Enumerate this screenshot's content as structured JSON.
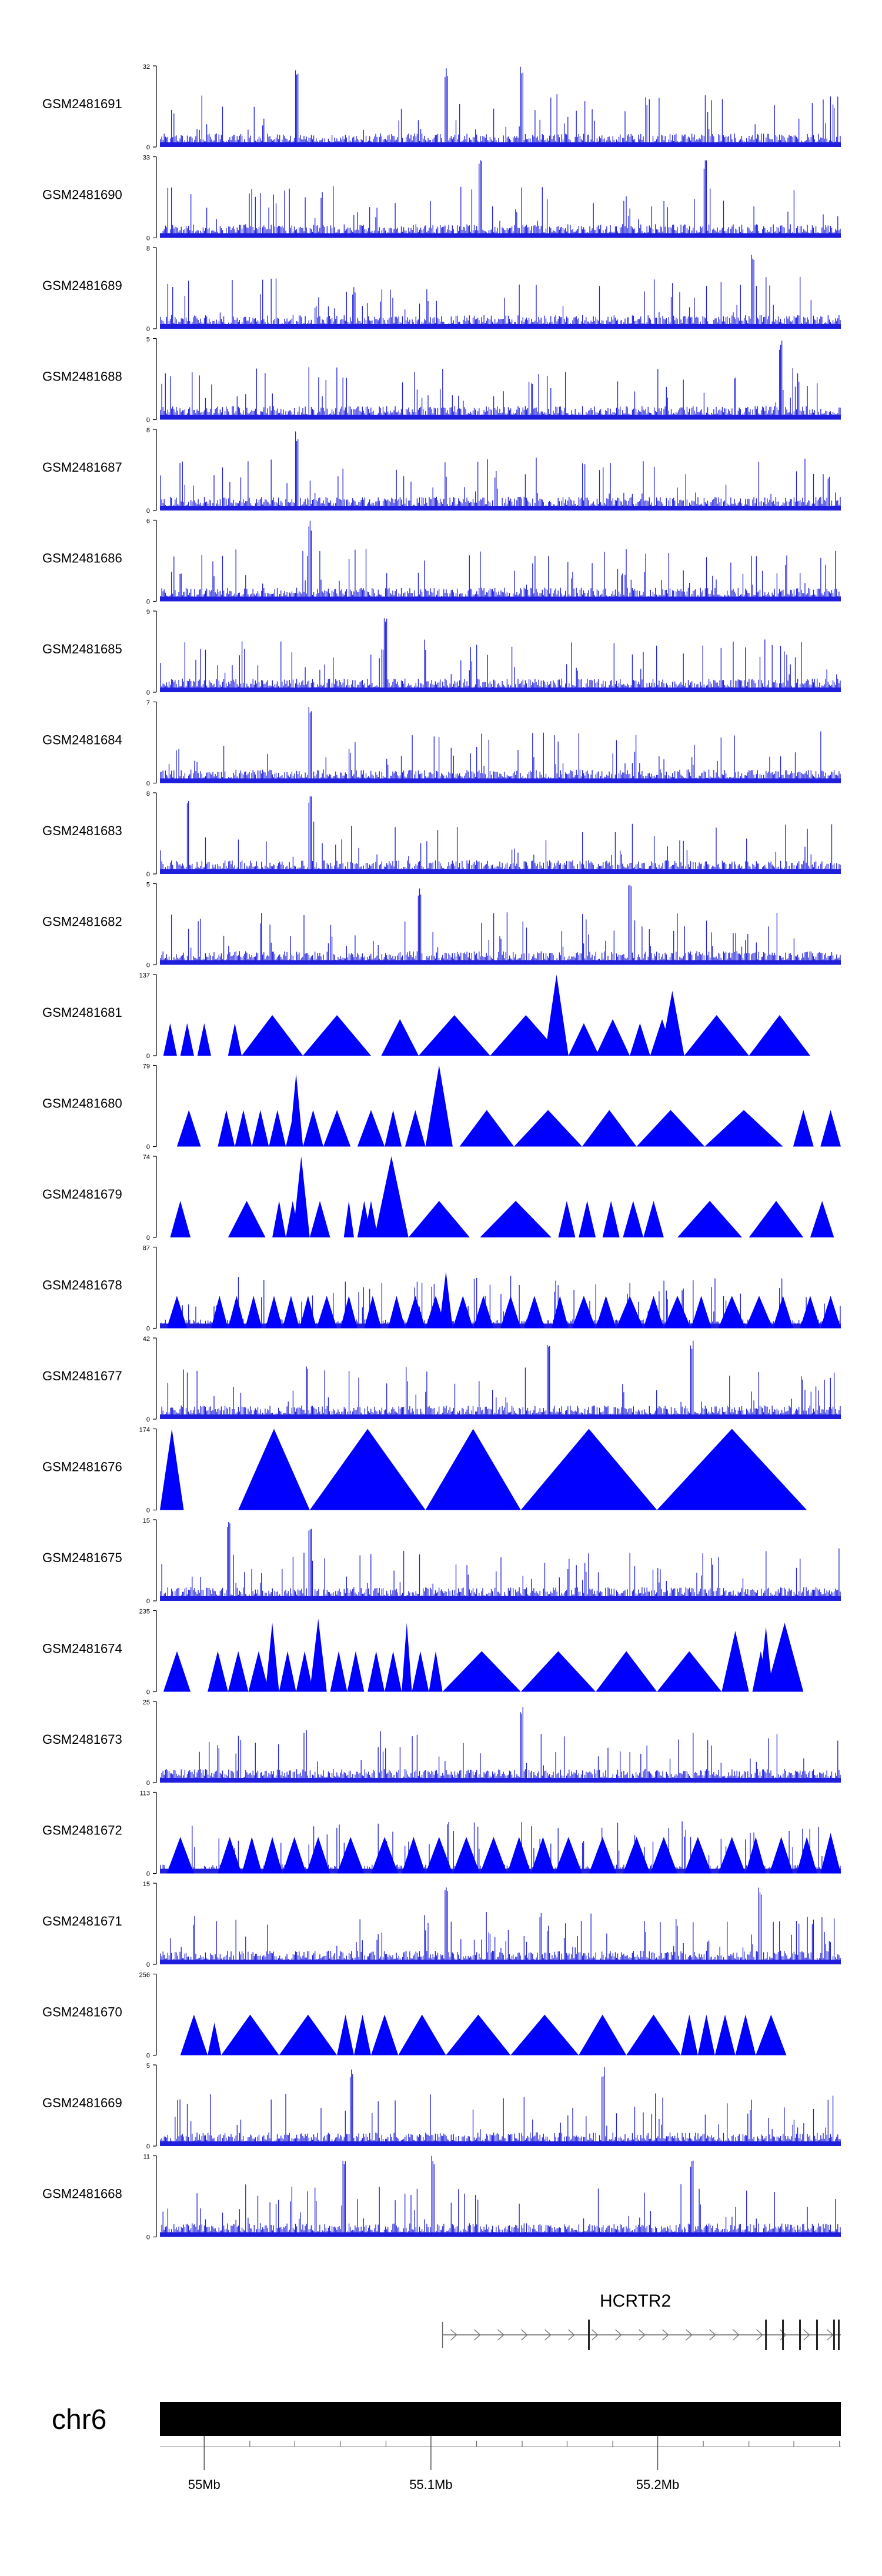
{
  "chart_data": {
    "type": "area",
    "title": "",
    "track_color": "#1e1edc",
    "filled_track_color": "#0000ff",
    "axis_color": "#000000",
    "tracks": [
      {
        "name": "GSM2481691",
        "ymax": "32",
        "ymin": "0",
        "style": "signal",
        "seed": 91,
        "peaks": [
          0.2,
          0.42,
          0.53
        ]
      },
      {
        "name": "GSM2481690",
        "ymax": "33",
        "ymin": "0",
        "style": "signal",
        "seed": 90,
        "peaks": [
          0.47,
          0.8
        ]
      },
      {
        "name": "GSM2481689",
        "ymax": "8",
        "ymin": "0",
        "style": "signal",
        "seed": 89,
        "peaks": [
          0.87
        ]
      },
      {
        "name": "GSM2481688",
        "ymax": "5",
        "ymin": "0",
        "style": "signal",
        "seed": 88,
        "peaks": [
          0.91
        ]
      },
      {
        "name": "GSM2481687",
        "ymax": "8",
        "ymin": "0",
        "style": "signal",
        "seed": 87,
        "peaks": [
          0.2
        ]
      },
      {
        "name": "GSM2481686",
        "ymax": "6",
        "ymin": "0",
        "style": "signal",
        "seed": 86,
        "peaks": [
          0.22
        ]
      },
      {
        "name": "GSM2481685",
        "ymax": "9",
        "ymin": "0",
        "style": "signal",
        "seed": 85,
        "peaks": [
          0.33
        ]
      },
      {
        "name": "GSM2481684",
        "ymax": "7",
        "ymin": "0",
        "style": "signal",
        "seed": 84,
        "peaks": [
          0.22
        ]
      },
      {
        "name": "GSM2481683",
        "ymax": "8",
        "ymin": "0",
        "style": "signal",
        "seed": 83,
        "peaks": [
          0.04,
          0.22
        ]
      },
      {
        "name": "GSM2481682",
        "ymax": "5",
        "ymin": "0",
        "style": "signal",
        "seed": 82,
        "peaks": [
          0.38,
          0.69
        ]
      },
      {
        "name": "GSM2481681",
        "ymax": "137",
        "ymin": "0",
        "style": "triangles",
        "seed": 81,
        "triangles": [
          [
            0.005,
            0.025,
            0.4
          ],
          [
            0.03,
            0.05,
            0.4
          ],
          [
            0.055,
            0.075,
            0.4
          ],
          [
            0.1,
            0.12,
            0.4
          ],
          [
            0.12,
            0.21,
            0.5
          ],
          [
            0.21,
            0.31,
            0.5
          ],
          [
            0.325,
            0.38,
            0.45
          ],
          [
            0.38,
            0.485,
            0.5
          ],
          [
            0.485,
            0.59,
            0.5
          ],
          [
            0.565,
            0.6,
            1.0
          ],
          [
            0.6,
            0.645,
            0.4
          ],
          [
            0.64,
            0.69,
            0.45
          ],
          [
            0.69,
            0.72,
            0.4
          ],
          [
            0.72,
            0.755,
            0.45
          ],
          [
            0.735,
            0.77,
            0.8
          ],
          [
            0.77,
            0.865,
            0.5
          ],
          [
            0.865,
            0.955,
            0.5
          ]
        ]
      },
      {
        "name": "GSM2481680",
        "ymax": "79",
        "ymin": "0",
        "style": "triangles",
        "seed": 80,
        "triangles": [
          [
            0.025,
            0.06,
            0.45
          ],
          [
            0.085,
            0.11,
            0.45
          ],
          [
            0.11,
            0.135,
            0.45
          ],
          [
            0.135,
            0.16,
            0.45
          ],
          [
            0.16,
            0.185,
            0.45
          ],
          [
            0.185,
            0.21,
            0.45
          ],
          [
            0.19,
            0.21,
            0.9
          ],
          [
            0.21,
            0.24,
            0.45
          ],
          [
            0.24,
            0.28,
            0.45
          ],
          [
            0.29,
            0.33,
            0.45
          ],
          [
            0.33,
            0.355,
            0.45
          ],
          [
            0.36,
            0.39,
            0.45
          ],
          [
            0.39,
            0.43,
            1.0
          ],
          [
            0.44,
            0.52,
            0.45
          ],
          [
            0.52,
            0.62,
            0.45
          ],
          [
            0.62,
            0.7,
            0.45
          ],
          [
            0.7,
            0.8,
            0.45
          ],
          [
            0.8,
            0.915,
            0.45
          ],
          [
            0.93,
            0.96,
            0.45
          ],
          [
            0.97,
            1.0,
            0.45
          ]
        ]
      },
      {
        "name": "GSM2481679",
        "ymax": "74",
        "ymin": "0",
        "style": "triangles",
        "seed": 79,
        "triangles": [
          [
            0.015,
            0.045,
            0.45
          ],
          [
            0.1,
            0.155,
            0.45
          ],
          [
            0.165,
            0.185,
            0.45
          ],
          [
            0.185,
            0.205,
            0.45
          ],
          [
            0.195,
            0.22,
            1.0
          ],
          [
            0.22,
            0.25,
            0.45
          ],
          [
            0.27,
            0.285,
            0.45
          ],
          [
            0.29,
            0.31,
            0.45
          ],
          [
            0.3,
            0.32,
            0.45
          ],
          [
            0.315,
            0.365,
            1.0
          ],
          [
            0.365,
            0.455,
            0.45
          ],
          [
            0.47,
            0.575,
            0.45
          ],
          [
            0.585,
            0.61,
            0.45
          ],
          [
            0.615,
            0.64,
            0.45
          ],
          [
            0.65,
            0.675,
            0.45
          ],
          [
            0.68,
            0.71,
            0.45
          ],
          [
            0.71,
            0.74,
            0.45
          ],
          [
            0.76,
            0.855,
            0.45
          ],
          [
            0.865,
            0.945,
            0.45
          ],
          [
            0.955,
            0.99,
            0.45
          ]
        ]
      },
      {
        "name": "GSM2481678",
        "ymax": "87",
        "ymin": "0",
        "style": "mixed",
        "seed": 78,
        "triangles": [
          [
            0.01,
            0.04,
            0.4
          ],
          [
            0.075,
            0.1,
            0.4
          ],
          [
            0.1,
            0.125,
            0.4
          ],
          [
            0.125,
            0.15,
            0.4
          ],
          [
            0.155,
            0.18,
            0.4
          ],
          [
            0.18,
            0.205,
            0.4
          ],
          [
            0.205,
            0.23,
            0.4
          ],
          [
            0.23,
            0.26,
            0.4
          ],
          [
            0.265,
            0.29,
            0.4
          ],
          [
            0.3,
            0.325,
            0.4
          ],
          [
            0.335,
            0.36,
            0.4
          ],
          [
            0.36,
            0.39,
            0.4
          ],
          [
            0.39,
            0.42,
            0.4
          ],
          [
            0.41,
            0.43,
            0.7
          ],
          [
            0.43,
            0.46,
            0.4
          ],
          [
            0.46,
            0.49,
            0.4
          ],
          [
            0.5,
            0.53,
            0.4
          ],
          [
            0.535,
            0.565,
            0.4
          ],
          [
            0.575,
            0.6,
            0.4
          ],
          [
            0.605,
            0.64,
            0.4
          ],
          [
            0.64,
            0.67,
            0.4
          ],
          [
            0.67,
            0.71,
            0.4
          ],
          [
            0.71,
            0.74,
            0.4
          ],
          [
            0.74,
            0.78,
            0.4
          ],
          [
            0.78,
            0.81,
            0.4
          ],
          [
            0.82,
            0.86,
            0.4
          ],
          [
            0.86,
            0.9,
            0.4
          ],
          [
            0.9,
            0.93,
            0.4
          ],
          [
            0.94,
            0.97,
            0.4
          ],
          [
            0.97,
            1.0,
            0.4
          ]
        ]
      },
      {
        "name": "GSM2481677",
        "ymax": "42",
        "ymin": "0",
        "style": "signal",
        "seed": 77,
        "peaks": [
          0.57,
          0.78
        ]
      },
      {
        "name": "GSM2481676",
        "ymax": "174",
        "ymin": "0",
        "style": "triangles",
        "seed": 76,
        "triangles": [
          [
            0.0,
            0.035,
            1.0
          ],
          [
            0.115,
            0.22,
            1.0
          ],
          [
            0.22,
            0.39,
            1.0
          ],
          [
            0.39,
            0.53,
            1.0
          ],
          [
            0.53,
            0.73,
            1.0
          ],
          [
            0.73,
            0.95,
            1.0
          ]
        ]
      },
      {
        "name": "GSM2481675",
        "ymax": "15",
        "ymin": "0",
        "style": "signal",
        "seed": 75,
        "peaks": [
          0.22,
          0.1
        ]
      },
      {
        "name": "GSM2481674",
        "ymax": "235",
        "ymin": "0",
        "style": "triangles",
        "seed": 74,
        "triangles": [
          [
            0.005,
            0.045,
            0.5
          ],
          [
            0.07,
            0.1,
            0.5
          ],
          [
            0.1,
            0.13,
            0.5
          ],
          [
            0.13,
            0.16,
            0.5
          ],
          [
            0.155,
            0.175,
            0.85
          ],
          [
            0.175,
            0.2,
            0.5
          ],
          [
            0.2,
            0.225,
            0.5
          ],
          [
            0.22,
            0.245,
            0.9
          ],
          [
            0.25,
            0.275,
            0.5
          ],
          [
            0.275,
            0.3,
            0.5
          ],
          [
            0.305,
            0.33,
            0.5
          ],
          [
            0.33,
            0.355,
            0.5
          ],
          [
            0.355,
            0.37,
            0.85
          ],
          [
            0.37,
            0.395,
            0.5
          ],
          [
            0.395,
            0.415,
            0.5
          ],
          [
            0.415,
            0.53,
            0.5
          ],
          [
            0.53,
            0.64,
            0.5
          ],
          [
            0.64,
            0.73,
            0.5
          ],
          [
            0.73,
            0.825,
            0.5
          ],
          [
            0.825,
            0.865,
            0.75
          ],
          [
            0.87,
            0.895,
            0.5
          ],
          [
            0.88,
            0.9,
            0.8
          ],
          [
            0.89,
            0.945,
            0.85
          ]
        ]
      },
      {
        "name": "GSM2481673",
        "ymax": "25",
        "ymin": "0",
        "style": "signal",
        "seed": 73,
        "peaks": [
          0.53
        ]
      },
      {
        "name": "GSM2481672",
        "ymax": "113",
        "ymin": "0",
        "style": "mixed",
        "seed": 72,
        "triangles": [
          [
            0.01,
            0.05,
            0.45
          ],
          [
            0.085,
            0.12,
            0.45
          ],
          [
            0.12,
            0.15,
            0.45
          ],
          [
            0.15,
            0.18,
            0.45
          ],
          [
            0.18,
            0.215,
            0.45
          ],
          [
            0.215,
            0.25,
            0.45
          ],
          [
            0.26,
            0.3,
            0.45
          ],
          [
            0.31,
            0.35,
            0.45
          ],
          [
            0.355,
            0.39,
            0.45
          ],
          [
            0.39,
            0.43,
            0.45
          ],
          [
            0.43,
            0.47,
            0.45
          ],
          [
            0.47,
            0.51,
            0.45
          ],
          [
            0.51,
            0.545,
            0.45
          ],
          [
            0.545,
            0.58,
            0.45
          ],
          [
            0.58,
            0.62,
            0.45
          ],
          [
            0.63,
            0.67,
            0.45
          ],
          [
            0.68,
            0.72,
            0.45
          ],
          [
            0.72,
            0.76,
            0.45
          ],
          [
            0.77,
            0.81,
            0.45
          ],
          [
            0.82,
            0.86,
            0.45
          ],
          [
            0.86,
            0.89,
            0.45
          ],
          [
            0.895,
            0.93,
            0.45
          ],
          [
            0.935,
            0.965,
            0.45
          ],
          [
            0.97,
            1.0,
            0.5
          ]
        ]
      },
      {
        "name": "GSM2481671",
        "ymax": "15",
        "ymin": "0",
        "style": "signal",
        "seed": 71,
        "peaks": [
          0.42,
          0.88
        ]
      },
      {
        "name": "GSM2481670",
        "ymax": "256",
        "ymin": "0",
        "style": "triangles",
        "seed": 70,
        "triangles": [
          [
            0.03,
            0.07,
            0.5
          ],
          [
            0.07,
            0.09,
            0.4
          ],
          [
            0.09,
            0.175,
            0.5
          ],
          [
            0.175,
            0.26,
            0.5
          ],
          [
            0.26,
            0.285,
            0.5
          ],
          [
            0.285,
            0.31,
            0.5
          ],
          [
            0.31,
            0.35,
            0.5
          ],
          [
            0.35,
            0.42,
            0.5
          ],
          [
            0.42,
            0.515,
            0.5
          ],
          [
            0.515,
            0.615,
            0.5
          ],
          [
            0.615,
            0.685,
            0.5
          ],
          [
            0.685,
            0.765,
            0.5
          ],
          [
            0.765,
            0.79,
            0.5
          ],
          [
            0.79,
            0.815,
            0.5
          ],
          [
            0.815,
            0.845,
            0.5
          ],
          [
            0.845,
            0.875,
            0.5
          ],
          [
            0.875,
            0.92,
            0.5
          ]
        ]
      },
      {
        "name": "GSM2481669",
        "ymax": "5",
        "ymin": "0",
        "style": "signal",
        "seed": 69,
        "peaks": [
          0.28,
          0.65
        ]
      },
      {
        "name": "GSM2481668",
        "ymax": "11",
        "ymin": "0",
        "style": "signal",
        "seed": 68,
        "peaks": [
          0.27,
          0.4,
          0.78
        ]
      }
    ],
    "gene": {
      "label": "HCRTR2",
      "strand": "+",
      "start_frac": 0.415,
      "end_frac": 1.0,
      "exons": [
        0.63,
        0.89,
        0.915,
        0.94,
        0.965,
        0.99,
        0.997
      ]
    },
    "chromosome": {
      "label": "chr6",
      "ticks": [
        {
          "label": "55Mb",
          "frac": 0.065
        },
        {
          "label": "55.1Mb",
          "frac": 0.398
        },
        {
          "label": "55.2Mb",
          "frac": 0.731
        }
      ],
      "minor_ticks": [
        0.065,
        0.132,
        0.198,
        0.265,
        0.332,
        0.398,
        0.465,
        0.532,
        0.598,
        0.665,
        0.731,
        0.798,
        0.865,
        0.931,
        0.998
      ]
    }
  }
}
